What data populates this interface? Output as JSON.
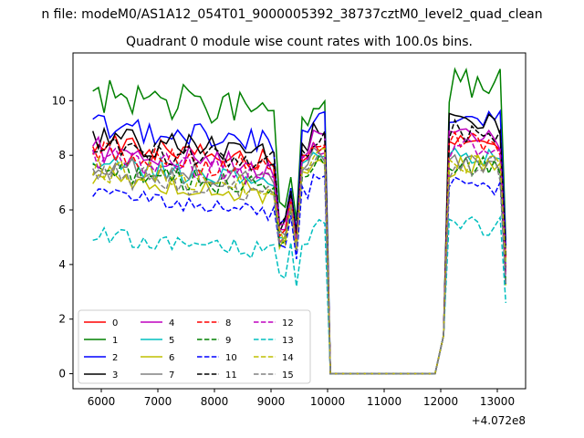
{
  "figure": {
    "suptitle": "n file: modeM0/AS1A12_054T01_9000005392_38737cztM0_level2_quad_clean",
    "title": "Quadrant 0 module wise count rates with 100.0s bins.",
    "offset_label": "+4.072e8"
  },
  "chart_data": {
    "type": "line",
    "title": "Quadrant 0 module wise count rates with 100.0s bins.",
    "xlabel": "",
    "ylabel": "",
    "x_offset": "+4.072e8",
    "xlim": [
      5500,
      13500
    ],
    "ylim": [
      -0.55,
      11.75
    ],
    "x_ticks": [
      6000,
      7000,
      8000,
      9000,
      10000,
      11000,
      12000,
      13000
    ],
    "x_tick_labels": [
      "6000",
      "7000",
      "8000",
      "9000",
      "10000",
      "11000",
      "12000",
      "13000"
    ],
    "y_ticks": [
      0,
      2,
      4,
      6,
      8,
      10
    ],
    "y_tick_labels": [
      "0",
      "2",
      "4",
      "6",
      "8",
      "10"
    ],
    "grid": false,
    "legend": {
      "placement": "lower-left",
      "columns": 4
    },
    "active_segments": [
      {
        "start": 5850,
        "end": 10000
      },
      {
        "start": 12000,
        "end": 13150
      }
    ],
    "gap": {
      "start": 10050,
      "end": 11950,
      "value": 0
    },
    "step": 100,
    "series": [
      {
        "name": "0",
        "color": "#ff0000",
        "dash": "solid",
        "base": 8.4,
        "amp": 0.45,
        "dip": 5.0,
        "peak": 8.3,
        "second": 8.5
      },
      {
        "name": "1",
        "color": "#008000",
        "dash": "solid",
        "base": 10.2,
        "amp": 0.7,
        "dip": 6.0,
        "peak": 9.8,
        "second": 10.5
      },
      {
        "name": "2",
        "color": "#0000ff",
        "dash": "solid",
        "base": 9.1,
        "amp": 0.5,
        "dip": 5.6,
        "peak": 9.5,
        "second": 9.5
      },
      {
        "name": "3",
        "color": "#000000",
        "dash": "solid",
        "base": 8.6,
        "amp": 0.5,
        "dip": 5.4,
        "peak": 8.9,
        "second": 9.2
      },
      {
        "name": "4",
        "color": "#bf00bf",
        "dash": "solid",
        "base": 8.2,
        "amp": 0.5,
        "dip": 5.2,
        "peak": 8.7,
        "second": 8.7
      },
      {
        "name": "5",
        "color": "#00bfbf",
        "dash": "solid",
        "base": 7.7,
        "amp": 0.45,
        "dip": 5.0,
        "peak": 8.2,
        "second": 8.0
      },
      {
        "name": "6",
        "color": "#bfbf00",
        "dash": "solid",
        "base": 7.2,
        "amp": 0.45,
        "dip": 4.8,
        "peak": 7.9,
        "second": 7.6
      },
      {
        "name": "7",
        "color": "#808080",
        "dash": "solid",
        "base": 7.6,
        "amp": 0.45,
        "dip": 5.0,
        "peak": 8.0,
        "second": 7.8
      },
      {
        "name": "8",
        "color": "#ff0000",
        "dash": "dashed",
        "base": 8.1,
        "amp": 0.45,
        "dip": 5.2,
        "peak": 8.4,
        "second": 8.4
      },
      {
        "name": "9",
        "color": "#008000",
        "dash": "dashed",
        "base": 7.4,
        "amp": 0.45,
        "dip": 4.9,
        "peak": 7.8,
        "second": 7.6
      },
      {
        "name": "10",
        "color": "#0000ff",
        "dash": "dashed",
        "base": 6.5,
        "amp": 0.35,
        "dip": 4.6,
        "peak": 7.2,
        "second": 6.9
      },
      {
        "name": "11",
        "color": "#000000",
        "dash": "dashed",
        "base": 8.3,
        "amp": 0.5,
        "dip": 5.5,
        "peak": 8.6,
        "second": 8.9
      },
      {
        "name": "12",
        "color": "#bf00bf",
        "dash": "dashed",
        "base": 7.9,
        "amp": 0.45,
        "dip": 5.2,
        "peak": 8.3,
        "second": 8.3
      },
      {
        "name": "13",
        "color": "#00bfbf",
        "dash": "dashed",
        "base": 5.1,
        "amp": 0.35,
        "dip": 3.6,
        "peak": 5.5,
        "second": 5.4
      },
      {
        "name": "14",
        "color": "#bfbf00",
        "dash": "dashed",
        "base": 7.5,
        "amp": 0.45,
        "dip": 5.0,
        "peak": 8.1,
        "second": 7.8
      },
      {
        "name": "15",
        "color": "#808080",
        "dash": "dashed",
        "base": 7.3,
        "amp": 0.45,
        "dip": 4.9,
        "peak": 7.9,
        "second": 7.5
      }
    ]
  }
}
